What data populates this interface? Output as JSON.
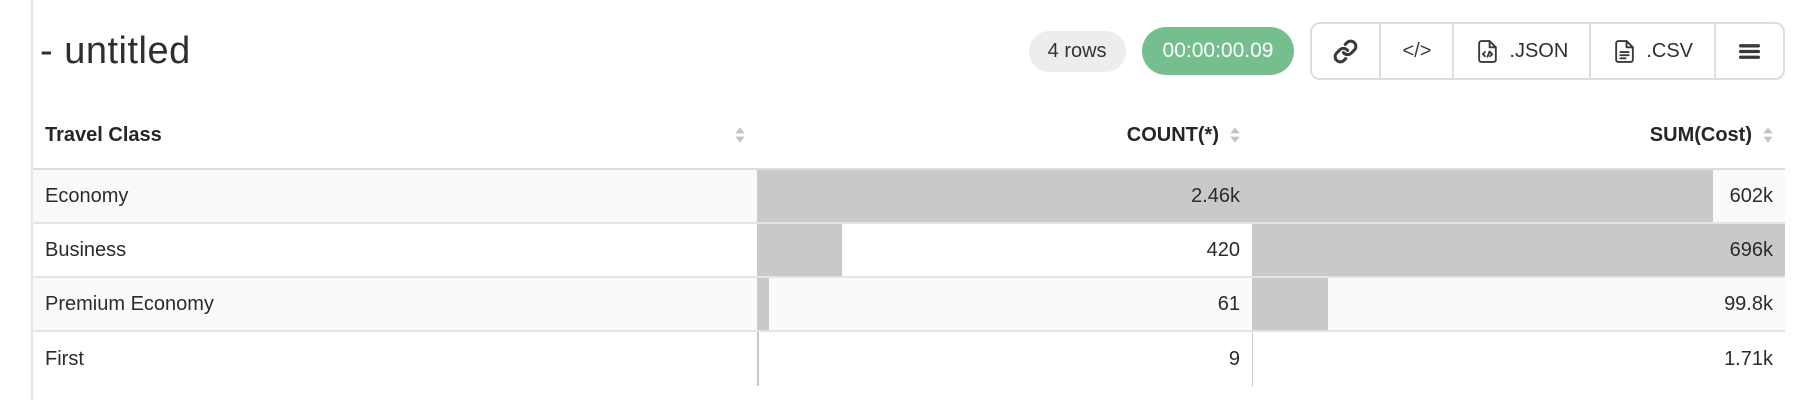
{
  "header": {
    "title": "- untitled",
    "rows_badge": "4 rows",
    "timer": "00:00:00.09"
  },
  "toolbar": {
    "buttons": [
      {
        "icon": "link-icon"
      },
      {
        "icon": "code-icon",
        "glyph": "</>"
      },
      {
        "icon": "json-file-icon",
        "label": ".JSON"
      },
      {
        "icon": "csv-file-icon",
        "label": ".CSV"
      },
      {
        "icon": "menu-icon"
      }
    ],
    "code_glyph": "</>",
    "json_label": ".JSON",
    "csv_label": ".CSV"
  },
  "table": {
    "columns": [
      {
        "label": "Travel Class",
        "align": "left",
        "sort_icon": "sort-icon"
      },
      {
        "label": "COUNT(*)",
        "align": "right",
        "sort_icon": "sort-icon"
      },
      {
        "label": "SUM(Cost)",
        "align": "right",
        "sort_icon": "sort-icon"
      }
    ],
    "rows": [
      {
        "travel_class": "Economy",
        "count_display": "2.46k",
        "count_value": 2460,
        "sum_display": "602k",
        "sum_value": 602000
      },
      {
        "travel_class": "Business",
        "count_display": "420",
        "count_value": 420,
        "sum_display": "696k",
        "sum_value": 696000
      },
      {
        "travel_class": "Premium Economy",
        "count_display": "61",
        "count_value": 61,
        "sum_display": "99.8k",
        "sum_value": 99800
      },
      {
        "travel_class": "First",
        "count_display": "9",
        "count_value": 9,
        "sum_display": "1.71k",
        "sum_value": 1710
      }
    ]
  },
  "colors": {
    "timer_green": "#75bf8e",
    "badge_gray": "#ededed",
    "bar_gray": "#c9c9c9",
    "button_border": "#dcdcdc",
    "panel_divider": "#e8e8e8"
  }
}
